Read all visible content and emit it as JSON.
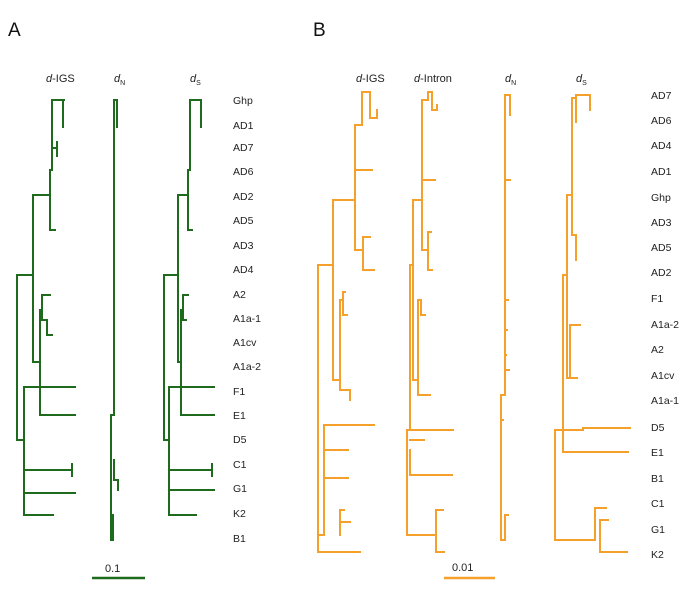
{
  "colors": {
    "green": "#1e6b1e",
    "orange": "#f5a02a"
  },
  "panels": [
    {
      "letter": "A",
      "color": "#1e6b1e",
      "columns": [
        {
          "prefix": "d",
          "rest": "-IGS"
        },
        {
          "prefix": "d",
          "rest": "",
          "sub": "N"
        },
        {
          "prefix": "d",
          "rest": "",
          "sub": "S"
        }
      ],
      "taxa": [
        "Ghp",
        "AD1",
        "AD7",
        "AD6",
        "AD2",
        "AD5",
        "AD3",
        "AD4",
        "A2",
        "A1a-1",
        "A1cv",
        "A1a-2",
        "F1",
        "E1",
        "D5",
        "C1",
        "G1",
        "K2",
        "B1"
      ],
      "scale_label": "0.1"
    },
    {
      "letter": "B",
      "color": "#f5a02a",
      "columns": [
        {
          "prefix": "d",
          "rest": "-IGS"
        },
        {
          "prefix": "d",
          "rest": "-Intron"
        },
        {
          "prefix": "d",
          "rest": "",
          "sub": "N"
        },
        {
          "prefix": "d",
          "rest": "",
          "sub": "S"
        }
      ],
      "taxa": [
        "AD7",
        "AD6",
        "AD4",
        "AD1",
        "Ghp",
        "AD3",
        "AD5",
        "AD2",
        "F1",
        "A1a-2",
        "A2",
        "A1cv",
        "A1a-1",
        "D5",
        "E1",
        "B1",
        "C1",
        "G1",
        "K2"
      ],
      "scale_label": "0.01"
    }
  ]
}
